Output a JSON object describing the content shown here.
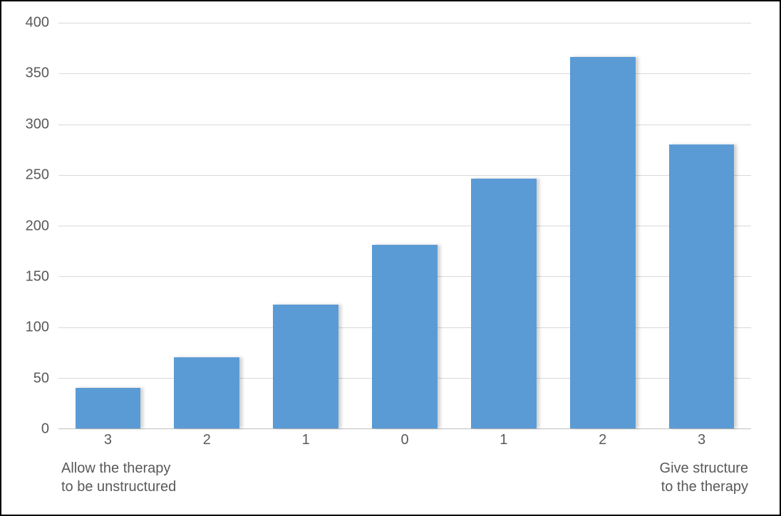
{
  "chart": {
    "type": "bar",
    "categories": [
      "3",
      "2",
      "1",
      "0",
      "1",
      "2",
      "3"
    ],
    "values": [
      40,
      70,
      122,
      181,
      246,
      366,
      280
    ],
    "bar_color": "#5b9bd5",
    "shadow_color": "rgba(0,0,0,0.18)",
    "bar_width_ratio": 0.66,
    "ylim": [
      0,
      400
    ],
    "ytick_step": 50,
    "yticks": [
      "0",
      "50",
      "100",
      "150",
      "200",
      "250",
      "300",
      "350",
      "400"
    ],
    "grid_color": "#d9d9d9",
    "axis_line_color": "#bfbfbf",
    "background_color": "#ffffff",
    "border_color": "#000000",
    "tick_font_color": "#595959",
    "tick_fontsize": 20,
    "anchor_left_label": "Allow the therapy\nto be unstructured",
    "anchor_right_label": "Give structure\nto the therapy",
    "anchor_fontsize": 20
  }
}
